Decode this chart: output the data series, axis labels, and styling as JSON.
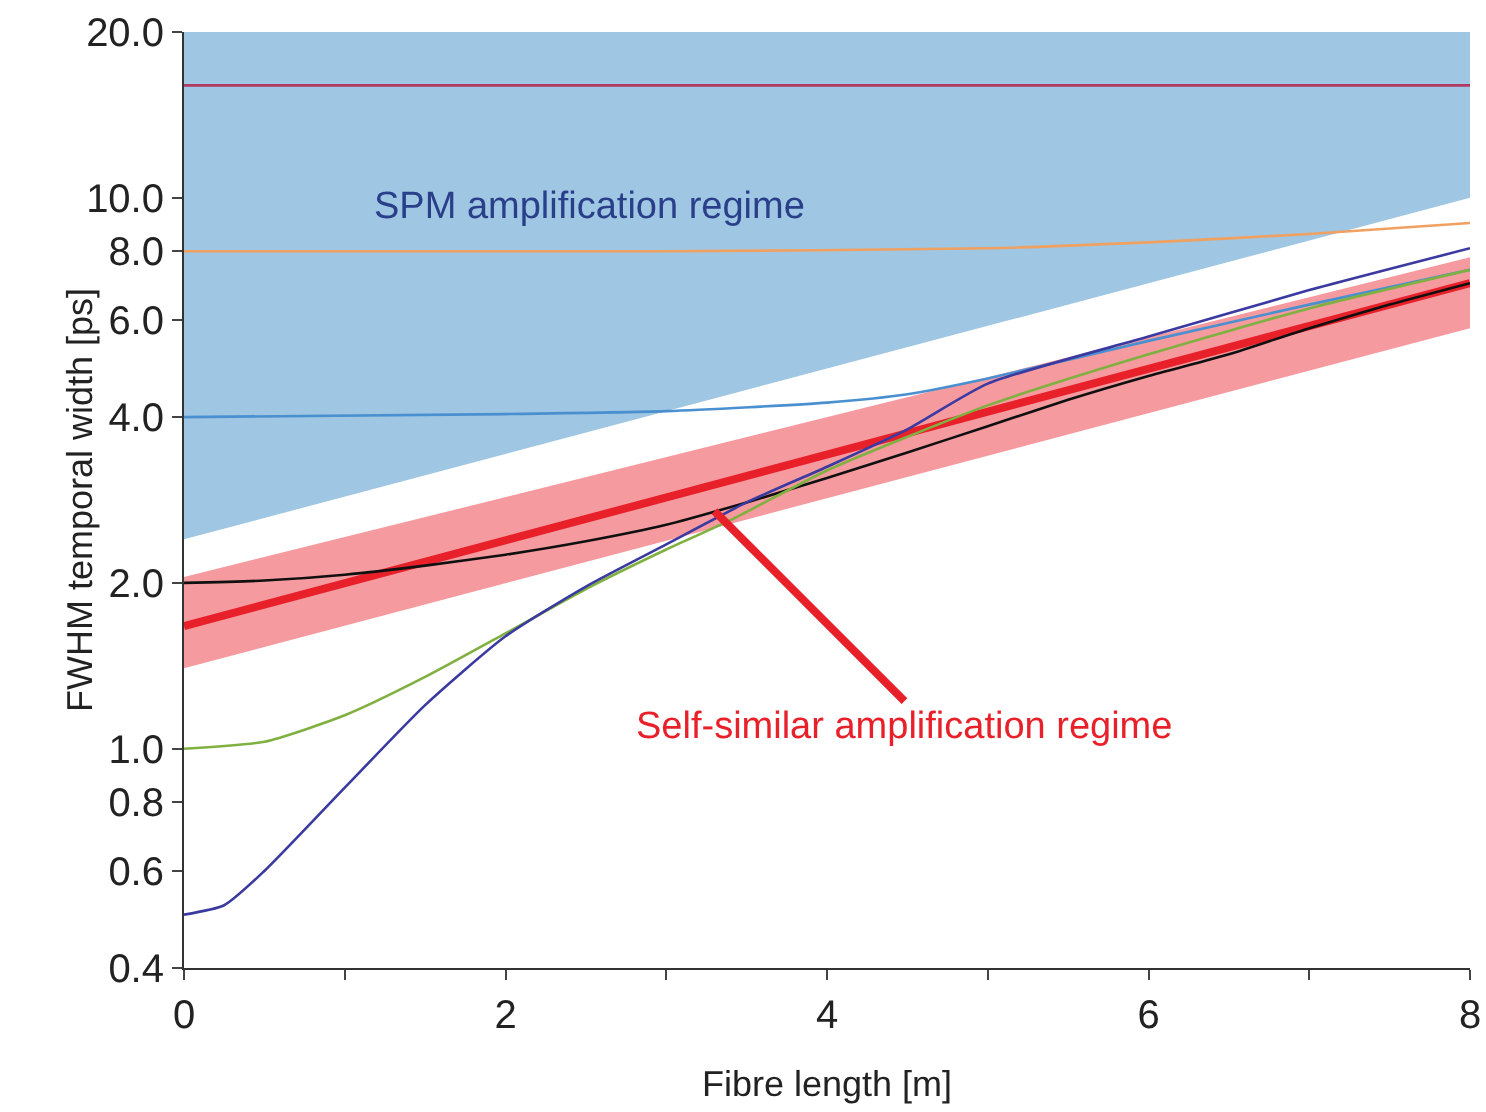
{
  "chart_data": {
    "type": "line",
    "xlabel": "Fibre length [m]",
    "ylabel": "FWHM temporal width [ps]",
    "log": "y",
    "grid": false,
    "marker": "none",
    "line_style": "solid",
    "xlim": [
      0,
      8
    ],
    "xticks": [
      0,
      {
        "value": 1,
        "label": null
      },
      2,
      {
        "value": 3,
        "label": null
      },
      4,
      {
        "value": 5,
        "label": null
      },
      6,
      {
        "value": 7,
        "label": null
      },
      8
    ],
    "ylim": [
      0.4,
      20
    ],
    "yticks": [
      {
        "value": 0.4,
        "label": "0.4"
      },
      {
        "value": 0.6,
        "label": "0.6"
      },
      {
        "value": 0.8,
        "label": "0.8"
      },
      {
        "value": 1,
        "label": "1.0"
      },
      {
        "value": 2,
        "label": "2.0"
      },
      {
        "value": 4,
        "label": "4.0"
      },
      {
        "value": 6,
        "label": "6.0"
      },
      {
        "value": 8,
        "label": "8.0"
      },
      {
        "value": 10,
        "label": "10.0"
      },
      {
        "value": 20,
        "label": "20.0"
      }
    ],
    "series": [
      {
        "type": "area",
        "color": "#7fb3d8",
        "x": [
          0,
          8
        ],
        "values": [
          null,
          null
        ],
        "lower": [
          2.4,
          10
        ],
        "upper": [
          20,
          20
        ]
      },
      {
        "color": "#e8202a",
        "x": [
          0,
          8
        ],
        "values": [
          1.67,
          7.0
        ],
        "lower": [
          1.4,
          5.8
        ],
        "upper": [
          2.05,
          7.8
        ]
      },
      {
        "color": "#b03a60",
        "x": [
          0,
          8
        ],
        "values": [
          16,
          16
        ]
      },
      {
        "color": "#f0a060",
        "x": [
          0,
          3,
          5,
          6,
          7,
          8
        ],
        "values": [
          8,
          8,
          8.1,
          8.3,
          8.6,
          9
        ]
      },
      {
        "color": "#4a90d0",
        "x": [
          0,
          2,
          3,
          4,
          4.5,
          5,
          6,
          7,
          8
        ],
        "values": [
          4,
          4.05,
          4.1,
          4.25,
          4.4,
          4.7,
          5.5,
          6.4,
          7.4
        ]
      },
      {
        "color": "#101010",
        "x": [
          0,
          0.5,
          1,
          1.5,
          2,
          2.5,
          3,
          3.5,
          4,
          4.5,
          5,
          5.5,
          6,
          6.5,
          7,
          7.5,
          8
        ],
        "values": [
          2,
          2.02,
          2.07,
          2.15,
          2.25,
          2.38,
          2.55,
          2.8,
          3.1,
          3.45,
          3.85,
          4.3,
          4.75,
          5.2,
          5.8,
          6.4,
          7.0
        ]
      },
      {
        "color": "#80b040",
        "x": [
          0,
          0.5,
          1,
          1.5,
          2,
          2.5,
          3,
          3.4,
          4,
          5,
          6,
          7,
          8
        ],
        "values": [
          1,
          1.03,
          1.15,
          1.35,
          1.62,
          1.95,
          2.3,
          2.6,
          3.2,
          4.2,
          5.2,
          6.3,
          7.4
        ]
      },
      {
        "color": "#3a3aa0",
        "x": [
          0,
          0.25,
          0.5,
          1,
          1.5,
          2,
          2.5,
          3,
          3.5,
          4,
          4.5,
          5,
          6,
          7,
          8
        ],
        "values": [
          0.5,
          0.52,
          0.6,
          0.85,
          1.2,
          1.6,
          1.97,
          2.35,
          2.8,
          3.25,
          3.8,
          4.6,
          5.6,
          6.8,
          8.1
        ]
      }
    ],
    "annotations": [
      "SPM amplification regime",
      {
        "text": "Self-similar amplification regime",
        "x": 3.3,
        "y": 2.7
      }
    ]
  }
}
